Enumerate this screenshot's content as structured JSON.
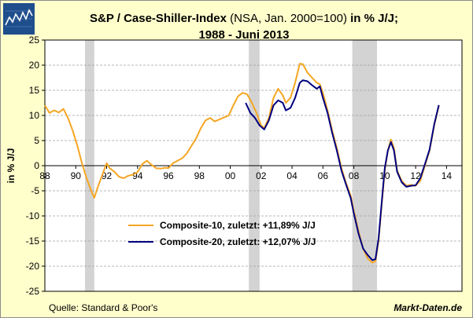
{
  "header": {
    "title_bold_1": "S&P / Case-Shiller-Index",
    "title_normal": "(NSA, Jan. 2000=100)",
    "title_bold_2": "in % J/J;",
    "title_line2": "1988 - Juni 2013"
  },
  "footer": {
    "source": "Quelle: Standard & Poor's",
    "brand": "Markt-Daten.de"
  },
  "colors": {
    "background": "#ffffcc",
    "composite10": "#f5a623",
    "composite20": "#000080",
    "recession": "#d3d3d3",
    "gridline": "#a0a0a0"
  },
  "chart_data": {
    "type": "line",
    "title": "S&P / Case-Shiller-Index (NSA, Jan. 2000=100) in % J/J; 1988 - Juni 2013",
    "xlabel": "",
    "ylabel": "in % J/J",
    "xlim": [
      1988,
      2015
    ],
    "ylim": [
      -25,
      25
    ],
    "yticks": [
      25,
      20,
      15,
      10,
      5,
      0,
      -5,
      -10,
      -15,
      -20,
      -25
    ],
    "xticks": [
      1988,
      1990,
      1992,
      1994,
      1996,
      1998,
      2000,
      2002,
      2004,
      2006,
      2008,
      2010,
      2012,
      2014
    ],
    "xtick_labels": [
      "88",
      "90",
      "92",
      "94",
      "96",
      "98",
      "00",
      "02",
      "04",
      "06",
      "08",
      "10",
      "12",
      "14"
    ],
    "grid": true,
    "legend_position": "bottom-center",
    "recessions": [
      [
        1990.6,
        1991.2
      ],
      [
        2001.2,
        2001.9
      ],
      [
        2007.9,
        2009.5
      ]
    ],
    "series": [
      {
        "name": "Composite-10, zuletzt: +11,89% J/J",
        "color": "#f5a623",
        "points": [
          [
            1988.0,
            12.0
          ],
          [
            1988.3,
            10.5
          ],
          [
            1988.6,
            11.0
          ],
          [
            1988.9,
            10.6
          ],
          [
            1989.2,
            11.3
          ],
          [
            1989.5,
            9.5
          ],
          [
            1989.8,
            7.0
          ],
          [
            1990.1,
            4.0
          ],
          [
            1990.4,
            0.5
          ],
          [
            1990.7,
            -2.5
          ],
          [
            1991.0,
            -5.0
          ],
          [
            1991.2,
            -6.4
          ],
          [
            1991.4,
            -4.5
          ],
          [
            1991.7,
            -2.0
          ],
          [
            1992.0,
            0.5
          ],
          [
            1992.2,
            -0.5
          ],
          [
            1992.5,
            -1.2
          ],
          [
            1992.8,
            -2.2
          ],
          [
            1993.1,
            -2.5
          ],
          [
            1993.4,
            -2.0
          ],
          [
            1993.7,
            -1.8
          ],
          [
            1994.0,
            -1.3
          ],
          [
            1994.3,
            0.3
          ],
          [
            1994.6,
            1.0
          ],
          [
            1994.9,
            0.2
          ],
          [
            1995.2,
            -0.5
          ],
          [
            1995.5,
            -0.6
          ],
          [
            1995.8,
            -0.4
          ],
          [
            1996.0,
            -0.5
          ],
          [
            1996.3,
            0.5
          ],
          [
            1996.6,
            1.0
          ],
          [
            1996.9,
            1.5
          ],
          [
            1997.2,
            2.5
          ],
          [
            1997.5,
            4.0
          ],
          [
            1997.8,
            5.5
          ],
          [
            1998.1,
            7.5
          ],
          [
            1998.4,
            9.0
          ],
          [
            1998.7,
            9.5
          ],
          [
            1999.0,
            8.8
          ],
          [
            1999.3,
            9.2
          ],
          [
            1999.6,
            9.6
          ],
          [
            1999.9,
            10.0
          ],
          [
            2000.2,
            12.0
          ],
          [
            2000.5,
            13.8
          ],
          [
            2000.8,
            14.5
          ],
          [
            2001.1,
            14.2
          ],
          [
            2001.4,
            12.5
          ],
          [
            2001.7,
            10.5
          ],
          [
            2002.0,
            8.0
          ],
          [
            2002.2,
            7.5
          ],
          [
            2002.5,
            9.5
          ],
          [
            2002.8,
            13.5
          ],
          [
            2003.1,
            15.3
          ],
          [
            2003.4,
            14.0
          ],
          [
            2003.6,
            12.5
          ],
          [
            2003.9,
            13.5
          ],
          [
            2004.2,
            16.5
          ],
          [
            2004.5,
            20.3
          ],
          [
            2004.7,
            20.2
          ],
          [
            2005.0,
            18.5
          ],
          [
            2005.3,
            17.5
          ],
          [
            2005.6,
            16.5
          ],
          [
            2005.8,
            16.2
          ],
          [
            2006.0,
            14.5
          ],
          [
            2006.3,
            11.0
          ],
          [
            2006.6,
            7.0
          ],
          [
            2006.9,
            3.5
          ],
          [
            2007.2,
            -0.5
          ],
          [
            2007.5,
            -3.5
          ],
          [
            2007.8,
            -6.0
          ],
          [
            2008.0,
            -9.0
          ],
          [
            2008.3,
            -13.0
          ],
          [
            2008.6,
            -16.5
          ],
          [
            2008.9,
            -18.5
          ],
          [
            2009.2,
            -19.3
          ],
          [
            2009.4,
            -19.0
          ],
          [
            2009.6,
            -15.0
          ],
          [
            2009.8,
            -8.0
          ],
          [
            2010.0,
            -1.0
          ],
          [
            2010.2,
            3.0
          ],
          [
            2010.4,
            5.2
          ],
          [
            2010.6,
            3.5
          ],
          [
            2010.8,
            -1.0
          ],
          [
            2011.1,
            -3.0
          ],
          [
            2011.4,
            -4.0
          ],
          [
            2011.7,
            -3.8
          ],
          [
            2012.0,
            -4.0
          ],
          [
            2012.3,
            -3.0
          ],
          [
            2012.6,
            0.0
          ],
          [
            2012.9,
            3.0
          ],
          [
            2013.2,
            8.0
          ],
          [
            2013.5,
            11.89
          ]
        ]
      },
      {
        "name": "Composite-20, zuletzt: +12,07% J/J",
        "color": "#000080",
        "points": [
          [
            2001.0,
            12.5
          ],
          [
            2001.3,
            10.5
          ],
          [
            2001.6,
            9.5
          ],
          [
            2001.9,
            8.0
          ],
          [
            2002.2,
            7.2
          ],
          [
            2002.5,
            9.0
          ],
          [
            2002.8,
            12.0
          ],
          [
            2003.1,
            13.0
          ],
          [
            2003.4,
            12.5
          ],
          [
            2003.6,
            11.0
          ],
          [
            2003.9,
            11.5
          ],
          [
            2004.2,
            13.5
          ],
          [
            2004.5,
            16.5
          ],
          [
            2004.7,
            17.0
          ],
          [
            2005.0,
            16.8
          ],
          [
            2005.3,
            16.0
          ],
          [
            2005.6,
            15.3
          ],
          [
            2005.8,
            15.8
          ],
          [
            2006.0,
            13.5
          ],
          [
            2006.3,
            10.5
          ],
          [
            2006.6,
            6.5
          ],
          [
            2006.9,
            3.0
          ],
          [
            2007.2,
            -1.0
          ],
          [
            2007.5,
            -3.8
          ],
          [
            2007.8,
            -6.5
          ],
          [
            2008.0,
            -9.5
          ],
          [
            2008.3,
            -13.5
          ],
          [
            2008.6,
            -16.5
          ],
          [
            2008.9,
            -17.8
          ],
          [
            2009.2,
            -18.8
          ],
          [
            2009.4,
            -18.6
          ],
          [
            2009.6,
            -14.5
          ],
          [
            2009.8,
            -7.5
          ],
          [
            2010.0,
            -0.5
          ],
          [
            2010.2,
            3.0
          ],
          [
            2010.4,
            4.7
          ],
          [
            2010.6,
            3.0
          ],
          [
            2010.8,
            -1.2
          ],
          [
            2011.1,
            -3.3
          ],
          [
            2011.4,
            -4.2
          ],
          [
            2011.7,
            -4.0
          ],
          [
            2012.0,
            -3.9
          ],
          [
            2012.3,
            -2.5
          ],
          [
            2012.6,
            0.3
          ],
          [
            2012.9,
            3.2
          ],
          [
            2013.2,
            8.2
          ],
          [
            2013.5,
            12.07
          ]
        ]
      }
    ]
  }
}
